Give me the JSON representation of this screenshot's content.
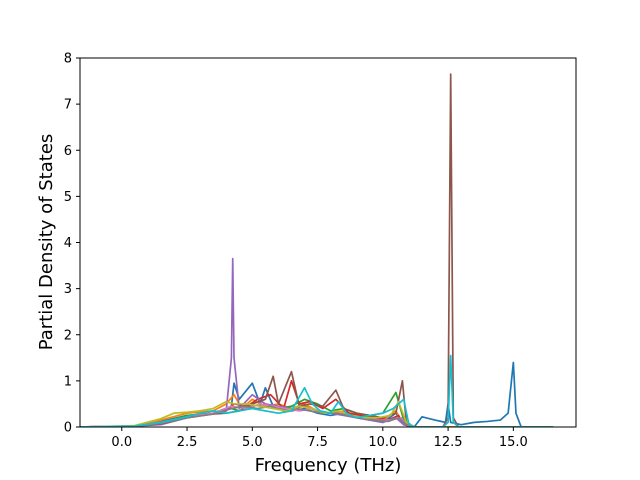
{
  "chart_data": {
    "type": "line",
    "title": "",
    "xlabel": "Frequency (THz)",
    "ylabel": "Partial Density of States",
    "xlim": [
      -1.6,
      17.4
    ],
    "ylim": [
      0,
      8
    ],
    "xticks": [
      {
        "value": 0.0,
        "label": "0.0"
      },
      {
        "value": 2.5,
        "label": "2.5"
      },
      {
        "value": 5.0,
        "label": "5.0"
      },
      {
        "value": 7.5,
        "label": "7.5"
      },
      {
        "value": 10.0,
        "label": "10.0"
      },
      {
        "value": 12.5,
        "label": "12.5"
      },
      {
        "value": 15.0,
        "label": "15.0"
      }
    ],
    "yticks": [
      {
        "value": 0,
        "label": "0"
      },
      {
        "value": 1,
        "label": "1"
      },
      {
        "value": 2,
        "label": "2"
      },
      {
        "value": 3,
        "label": "3"
      },
      {
        "value": 4,
        "label": "4"
      },
      {
        "value": 5,
        "label": "5"
      },
      {
        "value": 6,
        "label": "6"
      },
      {
        "value": 7,
        "label": "7"
      },
      {
        "value": 8,
        "label": "8"
      }
    ],
    "grid": false,
    "legend": "none",
    "series": [
      {
        "color": "#1f77b4",
        "points": [
          [
            -1.6,
            0
          ],
          [
            0.5,
            0.02
          ],
          [
            1.5,
            0.12
          ],
          [
            2.5,
            0.25
          ],
          [
            3.5,
            0.3
          ],
          [
            4.2,
            0.45
          ],
          [
            4.3,
            0.95
          ],
          [
            4.5,
            0.6
          ],
          [
            5.0,
            0.95
          ],
          [
            5.3,
            0.5
          ],
          [
            5.5,
            0.85
          ],
          [
            5.8,
            0.45
          ],
          [
            6.5,
            0.35
          ],
          [
            7.0,
            0.4
          ],
          [
            7.5,
            0.3
          ],
          [
            8.0,
            0.25
          ],
          [
            8.5,
            0.3
          ],
          [
            9.0,
            0.2
          ],
          [
            9.5,
            0.15
          ],
          [
            10.0,
            0.1
          ],
          [
            10.5,
            0.3
          ],
          [
            10.8,
            0.1
          ],
          [
            11.2,
            0.0
          ],
          [
            11.5,
            0.22
          ],
          [
            12.0,
            0.15
          ],
          [
            12.4,
            0.1
          ],
          [
            12.5,
            0.5
          ],
          [
            12.6,
            0.1
          ],
          [
            13.0,
            0.05
          ],
          [
            13.5,
            0.1
          ],
          [
            14.0,
            0.12
          ],
          [
            14.5,
            0.15
          ],
          [
            14.8,
            0.3
          ],
          [
            15.0,
            1.4
          ],
          [
            15.1,
            0.3
          ],
          [
            15.3,
            0.0
          ],
          [
            16.5,
            0.0
          ]
        ]
      },
      {
        "color": "#ff7f0e",
        "points": [
          [
            -1.6,
            0
          ],
          [
            0.5,
            0.02
          ],
          [
            1.5,
            0.15
          ],
          [
            2.5,
            0.3
          ],
          [
            3.5,
            0.35
          ],
          [
            4.0,
            0.5
          ],
          [
            4.3,
            0.7
          ],
          [
            4.6,
            0.4
          ],
          [
            5.0,
            0.6
          ],
          [
            5.5,
            0.45
          ],
          [
            6.0,
            0.5
          ],
          [
            6.5,
            0.4
          ],
          [
            7.0,
            0.5
          ],
          [
            7.5,
            0.35
          ],
          [
            8.0,
            0.3
          ],
          [
            8.5,
            0.35
          ],
          [
            9.0,
            0.25
          ],
          [
            9.5,
            0.2
          ],
          [
            10.0,
            0.15
          ],
          [
            10.5,
            0.35
          ],
          [
            10.8,
            0.05
          ],
          [
            11.2,
            0.0
          ],
          [
            16.5,
            0.0
          ]
        ]
      },
      {
        "color": "#2ca02c",
        "points": [
          [
            -1.6,
            0
          ],
          [
            0.5,
            0.02
          ],
          [
            1.5,
            0.1
          ],
          [
            2.5,
            0.25
          ],
          [
            3.5,
            0.3
          ],
          [
            4.2,
            0.4
          ],
          [
            4.5,
            0.35
          ],
          [
            5.0,
            0.45
          ],
          [
            5.5,
            0.5
          ],
          [
            6.0,
            0.4
          ],
          [
            6.5,
            0.45
          ],
          [
            7.0,
            0.6
          ],
          [
            7.5,
            0.5
          ],
          [
            8.0,
            0.35
          ],
          [
            8.5,
            0.4
          ],
          [
            9.0,
            0.3
          ],
          [
            9.5,
            0.25
          ],
          [
            10.0,
            0.3
          ],
          [
            10.5,
            0.75
          ],
          [
            10.8,
            0.15
          ],
          [
            11.2,
            0.0
          ],
          [
            16.5,
            0.0
          ]
        ]
      },
      {
        "color": "#d62728",
        "points": [
          [
            -1.6,
            0
          ],
          [
            0.5,
            0.02
          ],
          [
            1.5,
            0.08
          ],
          [
            2.5,
            0.2
          ],
          [
            3.5,
            0.3
          ],
          [
            4.0,
            0.35
          ],
          [
            4.3,
            0.5
          ],
          [
            4.8,
            0.45
          ],
          [
            5.2,
            0.6
          ],
          [
            5.7,
            0.7
          ],
          [
            6.2,
            0.4
          ],
          [
            6.5,
            1.0
          ],
          [
            6.8,
            0.5
          ],
          [
            7.2,
            0.55
          ],
          [
            7.7,
            0.4
          ],
          [
            8.2,
            0.6
          ],
          [
            8.7,
            0.3
          ],
          [
            9.2,
            0.25
          ],
          [
            9.7,
            0.2
          ],
          [
            10.2,
            0.15
          ],
          [
            10.6,
            0.25
          ],
          [
            10.8,
            0.05
          ],
          [
            11.2,
            0.0
          ],
          [
            16.5,
            0.0
          ]
        ]
      },
      {
        "color": "#9467bd",
        "points": [
          [
            -1.6,
            0
          ],
          [
            0.5,
            0.02
          ],
          [
            1.5,
            0.05
          ],
          [
            2.5,
            0.2
          ],
          [
            3.5,
            0.3
          ],
          [
            4.0,
            0.35
          ],
          [
            4.2,
            1.5
          ],
          [
            4.25,
            3.65
          ],
          [
            4.3,
            1.5
          ],
          [
            4.5,
            0.4
          ],
          [
            5.0,
            0.7
          ],
          [
            5.5,
            0.5
          ],
          [
            6.0,
            0.45
          ],
          [
            6.5,
            0.4
          ],
          [
            7.0,
            0.45
          ],
          [
            7.5,
            0.35
          ],
          [
            8.0,
            0.3
          ],
          [
            8.5,
            0.25
          ],
          [
            9.0,
            0.2
          ],
          [
            9.5,
            0.15
          ],
          [
            10.0,
            0.1
          ],
          [
            10.5,
            0.2
          ],
          [
            10.8,
            0.05
          ],
          [
            11.2,
            0.0
          ],
          [
            16.5,
            0.0
          ]
        ]
      },
      {
        "color": "#8c564b",
        "points": [
          [
            -1.6,
            0
          ],
          [
            0.5,
            0.02
          ],
          [
            1.5,
            0.07
          ],
          [
            2.5,
            0.2
          ],
          [
            3.5,
            0.28
          ],
          [
            4.0,
            0.3
          ],
          [
            4.5,
            0.35
          ],
          [
            5.0,
            0.5
          ],
          [
            5.5,
            0.6
          ],
          [
            5.8,
            1.1
          ],
          [
            6.0,
            0.5
          ],
          [
            6.5,
            1.2
          ],
          [
            6.8,
            0.45
          ],
          [
            7.2,
            0.5
          ],
          [
            7.7,
            0.45
          ],
          [
            8.2,
            0.8
          ],
          [
            8.5,
            0.4
          ],
          [
            9.0,
            0.3
          ],
          [
            9.5,
            0.25
          ],
          [
            10.0,
            0.2
          ],
          [
            10.5,
            0.3
          ],
          [
            10.75,
            1.0
          ],
          [
            10.9,
            0.1
          ],
          [
            11.2,
            0.0
          ],
          [
            12.3,
            0.0
          ],
          [
            12.5,
            0.2
          ],
          [
            12.6,
            7.65
          ],
          [
            12.7,
            0.2
          ],
          [
            12.9,
            0.0
          ],
          [
            16.5,
            0.0
          ]
        ]
      },
      {
        "color": "#e377c2",
        "points": [
          [
            -1.6,
            0
          ],
          [
            0.5,
            0.02
          ],
          [
            1.5,
            0.1
          ],
          [
            2.5,
            0.22
          ],
          [
            3.5,
            0.3
          ],
          [
            4.2,
            0.45
          ],
          [
            4.8,
            0.4
          ],
          [
            5.3,
            0.5
          ],
          [
            5.8,
            0.45
          ],
          [
            6.3,
            0.4
          ],
          [
            6.8,
            0.35
          ],
          [
            7.3,
            0.4
          ],
          [
            7.8,
            0.3
          ],
          [
            8.3,
            0.3
          ],
          [
            8.8,
            0.25
          ],
          [
            9.3,
            0.2
          ],
          [
            9.8,
            0.15
          ],
          [
            10.3,
            0.15
          ],
          [
            10.7,
            0.2
          ],
          [
            10.9,
            0.05
          ],
          [
            11.2,
            0.0
          ],
          [
            16.5,
            0.0
          ]
        ]
      },
      {
        "color": "#7f7f7f",
        "points": [
          [
            -1.6,
            0
          ],
          [
            0.5,
            0.02
          ],
          [
            1.5,
            0.08
          ],
          [
            2.5,
            0.2
          ],
          [
            3.5,
            0.28
          ],
          [
            4.2,
            0.4
          ],
          [
            4.7,
            0.45
          ],
          [
            5.2,
            0.4
          ],
          [
            5.7,
            0.45
          ],
          [
            6.2,
            0.35
          ],
          [
            6.7,
            0.4
          ],
          [
            7.2,
            0.35
          ],
          [
            7.7,
            0.3
          ],
          [
            8.2,
            0.3
          ],
          [
            8.7,
            0.25
          ],
          [
            9.2,
            0.2
          ],
          [
            9.7,
            0.15
          ],
          [
            10.2,
            0.12
          ],
          [
            10.6,
            0.2
          ],
          [
            10.9,
            0.05
          ],
          [
            11.2,
            0.0
          ],
          [
            16.5,
            0.0
          ]
        ]
      },
      {
        "color": "#bcbd22",
        "points": [
          [
            -1.6,
            0
          ],
          [
            0.5,
            0.03
          ],
          [
            1.5,
            0.18
          ],
          [
            2.0,
            0.3
          ],
          [
            2.5,
            0.32
          ],
          [
            3.0,
            0.35
          ],
          [
            3.5,
            0.4
          ],
          [
            4.0,
            0.55
          ],
          [
            4.3,
            0.5
          ],
          [
            4.8,
            0.5
          ],
          [
            5.3,
            0.45
          ],
          [
            5.8,
            0.4
          ],
          [
            6.3,
            0.35
          ],
          [
            6.8,
            0.45
          ],
          [
            7.3,
            0.4
          ],
          [
            7.8,
            0.3
          ],
          [
            8.3,
            0.35
          ],
          [
            8.8,
            0.25
          ],
          [
            9.3,
            0.2
          ],
          [
            9.8,
            0.2
          ],
          [
            10.3,
            0.25
          ],
          [
            10.6,
            0.55
          ],
          [
            10.9,
            0.1
          ],
          [
            11.2,
            0.0
          ],
          [
            16.5,
            0.0
          ]
        ]
      },
      {
        "color": "#17becf",
        "points": [
          [
            -1.6,
            0
          ],
          [
            0.5,
            0.02
          ],
          [
            1.5,
            0.1
          ],
          [
            2.5,
            0.22
          ],
          [
            3.0,
            0.3
          ],
          [
            3.5,
            0.35
          ],
          [
            4.0,
            0.3
          ],
          [
            4.5,
            0.35
          ],
          [
            5.0,
            0.4
          ],
          [
            5.5,
            0.35
          ],
          [
            6.0,
            0.3
          ],
          [
            6.5,
            0.35
          ],
          [
            7.0,
            0.85
          ],
          [
            7.3,
            0.5
          ],
          [
            7.6,
            0.35
          ],
          [
            8.0,
            0.3
          ],
          [
            8.3,
            0.55
          ],
          [
            8.6,
            0.3
          ],
          [
            9.0,
            0.2
          ],
          [
            9.5,
            0.25
          ],
          [
            10.0,
            0.3
          ],
          [
            10.4,
            0.4
          ],
          [
            10.8,
            0.6
          ],
          [
            11.0,
            0.05
          ],
          [
            11.2,
            0.0
          ],
          [
            12.3,
            0.0
          ],
          [
            12.5,
            0.1
          ],
          [
            12.6,
            1.55
          ],
          [
            12.7,
            0.1
          ],
          [
            12.9,
            0.0
          ],
          [
            16.5,
            0.0
          ]
        ]
      }
    ]
  }
}
